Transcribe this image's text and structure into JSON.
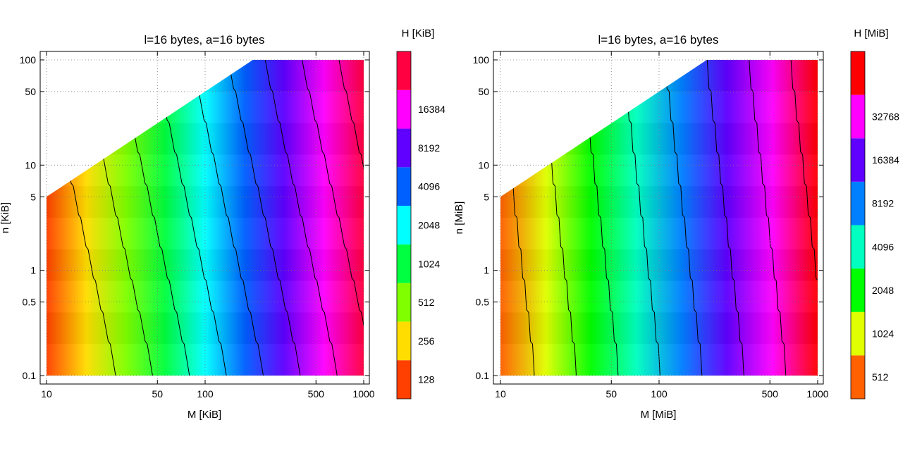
{
  "chart_data": [
    {
      "type": "heatmap",
      "title": "l=16 bytes, a=16 bytes",
      "xlabel": "M [KiB]",
      "ylabel": "n [KiB]",
      "xscale": "log",
      "yscale": "log",
      "xlim": [
        10,
        1000
      ],
      "ylim": [
        0.1,
        100
      ],
      "grid": true,
      "xticks": [
        10,
        50,
        100,
        500,
        1000
      ],
      "xtick_labels": [
        "10",
        "50",
        "100",
        "500",
        "1000"
      ],
      "yticks": [
        0.1,
        0.5,
        1,
        5,
        10,
        50,
        100
      ],
      "ytick_labels": [
        "0.1",
        "0.5",
        "1",
        "5",
        "10",
        "50",
        "100"
      ],
      "valid_region": "n <= M/2",
      "colorbar": {
        "title": "H [KiB]",
        "levels": [
          "128",
          "256",
          "512",
          "1024",
          "2048",
          "4096",
          "8192",
          "16384"
        ],
        "colors": [
          "#ff4000",
          "#ffdd00",
          "#80ff00",
          "#00ff40",
          "#00ffff",
          "#0060ff",
          "#6000ff",
          "#ff00ff",
          "#ff0040"
        ],
        "scale": "log2"
      },
      "h_approx_endpoints": {
        "M10": 90,
        "M1000": 24000
      }
    },
    {
      "type": "heatmap",
      "title": "l=16 bytes, a=16 bytes",
      "xlabel": "M [MiB]",
      "ylabel": "n [MiB]",
      "xscale": "log",
      "yscale": "log",
      "xlim": [
        10,
        1000
      ],
      "ylim": [
        0.1,
        100
      ],
      "grid": true,
      "xticks": [
        10,
        50,
        100,
        500,
        1000
      ],
      "xtick_labels": [
        "10",
        "50",
        "100",
        "500",
        "1000"
      ],
      "yticks": [
        0.1,
        0.5,
        1,
        5,
        10,
        50,
        100
      ],
      "ytick_labels": [
        "0.1",
        "0.5",
        "1",
        "5",
        "10",
        "50",
        "100"
      ],
      "valid_region": "n <= M/2",
      "colorbar": {
        "title": "H [MiB]",
        "levels": [
          "512",
          "1024",
          "2048",
          "4096",
          "8192",
          "16384",
          "32768"
        ],
        "colors": [
          "#ff6000",
          "#e0ff00",
          "#00ff00",
          "#00ffc0",
          "#0080ff",
          "#6000ff",
          "#ff00ff",
          "#ff0000"
        ],
        "scale": "log2"
      },
      "h_approx_endpoints": {
        "M10": 300,
        "M1000": 50000
      }
    }
  ]
}
